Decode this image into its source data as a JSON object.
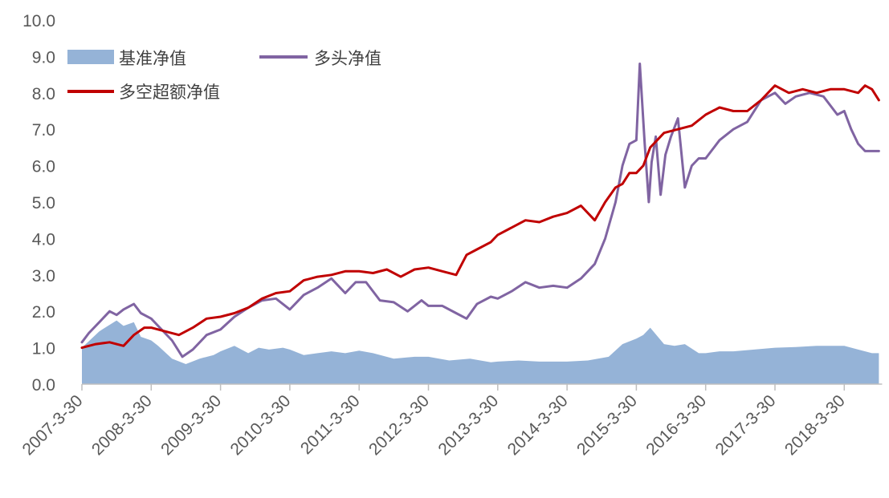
{
  "chart_data": {
    "type": "line",
    "ylim": [
      0,
      10
    ],
    "yticks": [
      "0.0",
      "1.0",
      "2.0",
      "3.0",
      "4.0",
      "5.0",
      "6.0",
      "7.0",
      "8.0",
      "9.0",
      "10.0"
    ],
    "x_tick_labels": [
      "2007-3-30",
      "2008-3-30",
      "2009-3-30",
      "2010-3-30",
      "2011-3-30",
      "2012-3-30",
      "2013-3-30",
      "2014-3-30",
      "2015-3-30",
      "2016-3-30",
      "2017-3-30",
      "2018-3-30"
    ],
    "legend_position": "top-left",
    "grid": false,
    "series": [
      {
        "name": "基准净值",
        "kind": "area",
        "color": "#95b3d7",
        "x": [
          2007.0,
          2007.25,
          2007.5,
          2007.6,
          2007.75,
          2007.85,
          2008.0,
          2008.1,
          2008.3,
          2008.5,
          2008.7,
          2008.9,
          2009.0,
          2009.2,
          2009.4,
          2009.55,
          2009.7,
          2009.9,
          2010.0,
          2010.2,
          2010.4,
          2010.6,
          2010.8,
          2011.0,
          2011.2,
          2011.5,
          2011.8,
          2012.0,
          2012.3,
          2012.6,
          2012.9,
          2013.0,
          2013.3,
          2013.6,
          2013.9,
          2014.0,
          2014.3,
          2014.6,
          2014.8,
          2015.0,
          2015.1,
          2015.2,
          2015.4,
          2015.55,
          2015.7,
          2015.9,
          2016.0,
          2016.2,
          2016.4,
          2016.7,
          2017.0,
          2017.3,
          2017.6,
          2017.9,
          2018.0,
          2018.2,
          2018.4,
          2018.5
        ],
        "values": [
          1.0,
          1.45,
          1.75,
          1.6,
          1.7,
          1.3,
          1.2,
          1.05,
          0.7,
          0.55,
          0.7,
          0.8,
          0.9,
          1.05,
          0.85,
          1.0,
          0.95,
          1.0,
          0.95,
          0.8,
          0.85,
          0.9,
          0.85,
          0.92,
          0.85,
          0.7,
          0.75,
          0.75,
          0.65,
          0.7,
          0.6,
          0.62,
          0.65,
          0.62,
          0.62,
          0.62,
          0.65,
          0.75,
          1.1,
          1.25,
          1.35,
          1.55,
          1.1,
          1.05,
          1.1,
          0.85,
          0.85,
          0.9,
          0.9,
          0.95,
          1.0,
          1.02,
          1.05,
          1.05,
          1.05,
          0.95,
          0.85,
          0.85
        ]
      },
      {
        "name": "多头净值",
        "kind": "line",
        "color": "#8064a2",
        "x": [
          2007.0,
          2007.1,
          2007.25,
          2007.4,
          2007.5,
          2007.6,
          2007.75,
          2007.85,
          2008.0,
          2008.1,
          2008.3,
          2008.45,
          2008.6,
          2008.8,
          2009.0,
          2009.2,
          2009.4,
          2009.6,
          2009.8,
          2010.0,
          2010.2,
          2010.4,
          2010.6,
          2010.8,
          2010.95,
          2011.1,
          2011.3,
          2011.5,
          2011.7,
          2011.9,
          2012.0,
          2012.2,
          2012.4,
          2012.55,
          2012.7,
          2012.9,
          2013.0,
          2013.2,
          2013.4,
          2013.6,
          2013.8,
          2014.0,
          2014.2,
          2014.4,
          2014.55,
          2014.7,
          2014.8,
          2014.9,
          2015.0,
          2015.05,
          2015.12,
          2015.18,
          2015.22,
          2015.28,
          2015.35,
          2015.42,
          2015.5,
          2015.6,
          2015.7,
          2015.8,
          2015.9,
          2016.0,
          2016.2,
          2016.4,
          2016.6,
          2016.8,
          2017.0,
          2017.15,
          2017.3,
          2017.5,
          2017.7,
          2017.9,
          2018.0,
          2018.1,
          2018.2,
          2018.3,
          2018.4,
          2018.5
        ],
        "values": [
          1.15,
          1.4,
          1.7,
          2.0,
          1.9,
          2.05,
          2.2,
          1.95,
          1.8,
          1.6,
          1.2,
          0.75,
          0.95,
          1.35,
          1.5,
          1.85,
          2.1,
          2.3,
          2.35,
          2.05,
          2.45,
          2.65,
          2.9,
          2.5,
          2.8,
          2.8,
          2.3,
          2.25,
          2.0,
          2.3,
          2.15,
          2.15,
          1.95,
          1.8,
          2.2,
          2.4,
          2.35,
          2.55,
          2.8,
          2.65,
          2.7,
          2.65,
          2.9,
          3.3,
          4.0,
          5.0,
          6.0,
          6.6,
          6.7,
          8.8,
          6.6,
          5.0,
          6.1,
          6.8,
          5.2,
          6.3,
          6.8,
          7.3,
          5.4,
          6.0,
          6.2,
          6.2,
          6.7,
          7.0,
          7.2,
          7.8,
          8.0,
          7.7,
          7.9,
          8.0,
          7.9,
          7.4,
          7.5,
          7.0,
          6.6,
          6.4,
          6.4,
          6.4
        ]
      },
      {
        "name": "多空超额净值",
        "kind": "line",
        "color": "#c00000",
        "x": [
          2007.0,
          2007.2,
          2007.4,
          2007.6,
          2007.75,
          2007.9,
          2008.0,
          2008.2,
          2008.4,
          2008.6,
          2008.8,
          2009.0,
          2009.2,
          2009.4,
          2009.6,
          2009.8,
          2010.0,
          2010.2,
          2010.4,
          2010.6,
          2010.8,
          2011.0,
          2011.2,
          2011.4,
          2011.6,
          2011.8,
          2012.0,
          2012.2,
          2012.4,
          2012.55,
          2012.7,
          2012.9,
          2013.0,
          2013.2,
          2013.4,
          2013.6,
          2013.8,
          2014.0,
          2014.2,
          2014.4,
          2014.55,
          2014.7,
          2014.8,
          2014.9,
          2015.0,
          2015.1,
          2015.2,
          2015.4,
          2015.6,
          2015.8,
          2016.0,
          2016.2,
          2016.4,
          2016.6,
          2016.8,
          2017.0,
          2017.2,
          2017.4,
          2017.6,
          2017.8,
          2018.0,
          2018.2,
          2018.3,
          2018.4,
          2018.5
        ],
        "values": [
          1.0,
          1.1,
          1.15,
          1.05,
          1.35,
          1.55,
          1.55,
          1.45,
          1.35,
          1.55,
          1.8,
          1.85,
          1.95,
          2.1,
          2.35,
          2.5,
          2.55,
          2.85,
          2.95,
          3.0,
          3.1,
          3.1,
          3.05,
          3.15,
          2.95,
          3.15,
          3.2,
          3.1,
          3.0,
          3.55,
          3.7,
          3.9,
          4.1,
          4.3,
          4.5,
          4.45,
          4.6,
          4.7,
          4.9,
          4.5,
          5.0,
          5.4,
          5.5,
          5.8,
          5.8,
          6.0,
          6.5,
          6.9,
          7.0,
          7.1,
          7.4,
          7.6,
          7.5,
          7.5,
          7.8,
          8.2,
          8.0,
          8.1,
          8.0,
          8.1,
          8.1,
          8.0,
          8.2,
          8.1,
          7.8
        ]
      }
    ]
  }
}
